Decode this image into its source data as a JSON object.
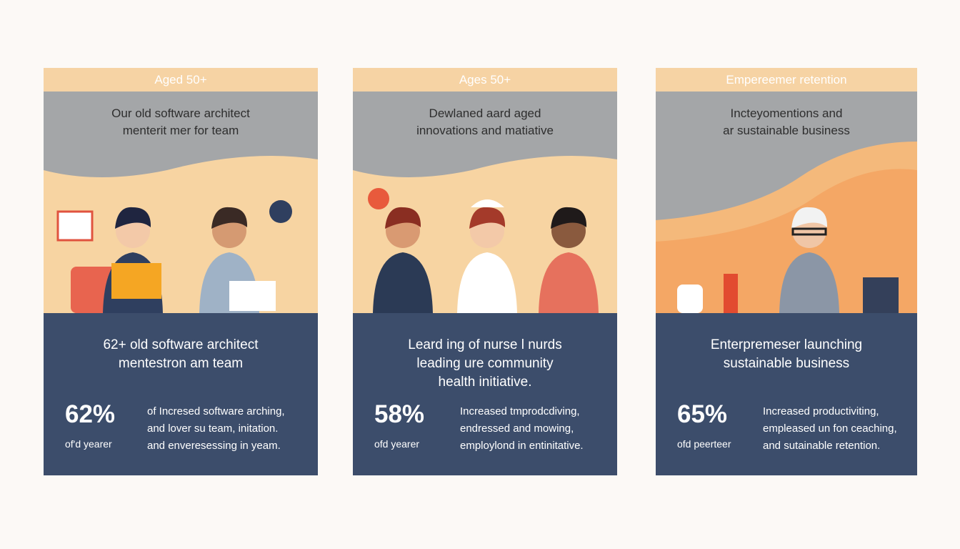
{
  "cards": [
    {
      "header": "Aged 50+",
      "subtitle": [
        "Our old software architect",
        "menterit mer for team"
      ],
      "headline": [
        "62+ old software architect",
        "mentestron am team"
      ],
      "stat": "62%",
      "stat_label": "of'd yearer",
      "description": [
        "of Incresed software arching,",
        "and lover su team, initation.",
        "and enveresessing in yeam."
      ]
    },
    {
      "header": "Ages 50+",
      "subtitle": [
        "Dewlaned aard aged",
        "innovations and matiative"
      ],
      "headline": [
        "Leard ing of nurse l nurds",
        "leading ure community",
        "health initiative."
      ],
      "stat": "58%",
      "stat_label": "ofd yearer",
      "description": [
        "Increased tmprodcdiving,",
        "endressed and mowing,",
        "employlond in entinitative."
      ]
    },
    {
      "header": "Empereemer retention",
      "subtitle": [
        "Incteyomentions and",
        "ar sustainable business"
      ],
      "headline": [
        "Enterpremeser launching",
        "sustainable business"
      ],
      "stat": "65%",
      "stat_label": "ofd peerteer",
      "description": [
        "Increased productiviting,",
        "empleased un fon ceaching,",
        "and sutainable retention."
      ]
    }
  ]
}
